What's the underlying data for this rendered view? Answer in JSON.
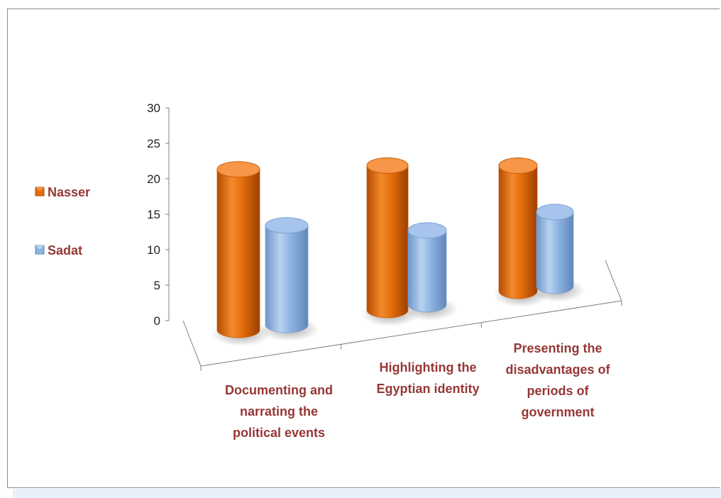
{
  "chart_data": {
    "type": "bar",
    "style": "3d-cylinder",
    "categories": [
      [
        "Documenting and",
        "narrating the",
        "political events"
      ],
      [
        "Highlighting the",
        "Egyptian identity"
      ],
      [
        "Presenting the",
        "disadvantages of",
        "periods of",
        "government"
      ]
    ],
    "series": [
      {
        "name": "Nasser",
        "color": "#e36c0a",
        "values": [
          25,
          22.5,
          19.5
        ]
      },
      {
        "name": "Sadat",
        "color": "#8db3e2",
        "values": [
          15.5,
          11.5,
          11.5
        ]
      }
    ],
    "ylim": [
      0,
      30
    ],
    "yticks": [
      "0",
      "5",
      "10",
      "15",
      "20",
      "25",
      "30"
    ],
    "legend_position": "left",
    "grid": false
  }
}
